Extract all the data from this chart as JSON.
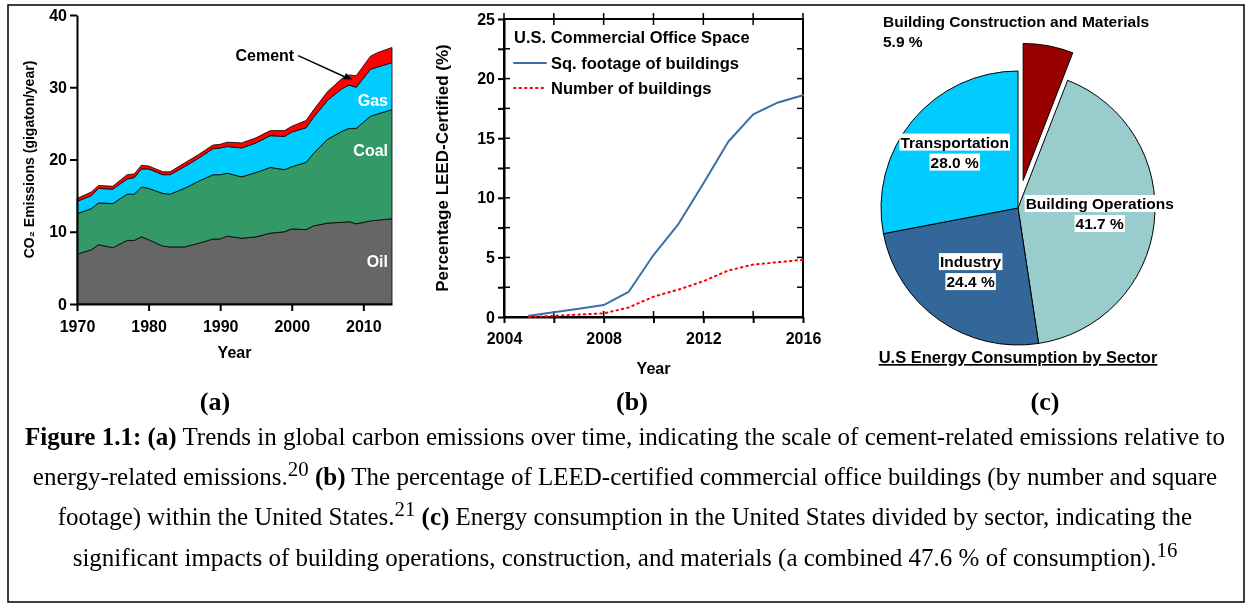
{
  "chart_data": [
    {
      "type": "area",
      "stacked": true,
      "xlabel": "Year",
      "ylabel": "CO₂ Emissions (gigaton/year)",
      "x": [
        1970,
        1972,
        1973,
        1975,
        1977,
        1978,
        1979,
        1980,
        1982,
        1983,
        1985,
        1987,
        1989,
        1990,
        1991,
        1993,
        1995,
        1997,
        1999,
        2000,
        2002,
        2003,
        2005,
        2007,
        2008,
        2009,
        2011,
        2012,
        2014
      ],
      "xlim": [
        1970,
        2014
      ],
      "xticks": [
        1970,
        1980,
        1990,
        2000,
        2010
      ],
      "ylim": [
        0,
        40
      ],
      "yticks": [
        0,
        10,
        20,
        30,
        40
      ],
      "series": [
        {
          "name": "Oil",
          "color": "#666666",
          "values": [
            6.9,
            7.5,
            8.2,
            7.8,
            8.8,
            8.8,
            9.3,
            8.9,
            8.0,
            7.9,
            7.9,
            8.4,
            9.0,
            9.0,
            9.4,
            9.1,
            9.3,
            9.8,
            10.0,
            10.4,
            10.3,
            10.8,
            11.2,
            11.3,
            11.4,
            11.1,
            11.5,
            11.6,
            11.8
          ]
        },
        {
          "name": "Coal",
          "color": "#339966",
          "values": [
            5.6,
            5.7,
            5.8,
            6.1,
            6.4,
            6.4,
            6.9,
            7.1,
            7.3,
            7.3,
            8.1,
            8.6,
            8.9,
            8.9,
            8.7,
            8.5,
            8.9,
            9.1,
            8.6,
            8.6,
            9.3,
            10.0,
            11.6,
            12.6,
            12.9,
            13.2,
            14.5,
            14.7,
            15.1
          ]
        },
        {
          "name": "Gas",
          "color": "#00ccff",
          "values": [
            1.7,
            1.8,
            2.0,
            2.0,
            2.1,
            2.3,
            2.5,
            2.7,
            2.6,
            2.7,
            3.0,
            3.2,
            3.6,
            3.7,
            3.7,
            4.0,
            4.1,
            4.4,
            4.6,
            4.8,
            4.8,
            5.0,
            5.4,
            5.9,
            6.0,
            5.7,
            6.5,
            6.5,
            6.5
          ]
        },
        {
          "name": "Cement",
          "color": "#ff0000",
          "values": [
            0.4,
            0.5,
            0.4,
            0.4,
            0.6,
            0.5,
            0.5,
            0.4,
            0.4,
            0.4,
            0.5,
            0.5,
            0.5,
            0.5,
            0.6,
            0.7,
            0.7,
            0.7,
            0.8,
            0.8,
            1.0,
            1.0,
            1.2,
            1.4,
            1.4,
            1.6,
            1.8,
            2.0,
            2.1
          ]
        }
      ],
      "annotations": [
        "(a)",
        "Figure 1.1: (a) Trends in global carbon emissions over time, indicating the scale of cement-related emissions relative to energy-related emissions.$^{20}$ (b) The percentage of LEED-certified commercial office buildings (by number and square footage) within the United States.$^{21}$ (c) Energy consumption in the United States divided by sector, indicating the significant impacts of building operations, construction, and materials (a combined 47.6 % of consumption).$^{16}$"
      ]
    },
    {
      "type": "line",
      "xlabel": "Year",
      "ylabel": "Percentage LEED-Certified (%)",
      "legend_title": "U.S. Commercial Office Space",
      "legend": "top left",
      "x": [
        2005,
        2006,
        2007,
        2008,
        2009,
        2010,
        2011,
        2012,
        2013,
        2014,
        2015,
        2016
      ],
      "xlim": [
        2004,
        2016
      ],
      "xticks": [
        2004,
        {
          "value": 2006,
          "label": null
        },
        2008,
        {
          "value": 2010,
          "label": null
        },
        2012,
        {
          "value": 2014,
          "label": null
        },
        2016
      ],
      "ylim": [
        0,
        25
      ],
      "yticks": [
        0,
        {
          "value": 2.5,
          "label": null
        },
        5,
        {
          "value": 7.5,
          "label": null
        },
        10,
        {
          "value": 12.5,
          "label": null
        },
        15,
        {
          "value": 17.5,
          "label": null
        },
        20,
        {
          "value": 22.5,
          "label": null
        },
        25
      ],
      "series": [
        {
          "name": "Sq. footage of buildings",
          "color": "#3c6ea5",
          "line_style": "solid",
          "values": [
            0.1,
            0.4,
            0.7,
            1.0,
            2.1,
            5.2,
            7.8,
            11.2,
            14.7,
            17.0,
            18.0,
            18.6
          ]
        },
        {
          "name": "Number of buildings",
          "color": "#ff0000",
          "line_style": "dotted",
          "values": [
            0,
            0.1,
            0.2,
            0.3,
            0.8,
            1.7,
            2.3,
            3.0,
            3.9,
            4.4,
            4.6,
            4.8
          ]
        }
      ],
      "annotations": [
        "(b)"
      ]
    },
    {
      "type": "pie",
      "title": "U.S Energy Consumption by Sector",
      "categories": [
        "Building Construction and Materials",
        "Building Operations",
        "Industry",
        "Transportation"
      ],
      "values": [
        5.9,
        41.7,
        24.4,
        28.0
      ],
      "colors": [
        "#990000",
        "#99cccc",
        "#336699",
        "#00ccff"
      ],
      "value_labels": [
        "5.9 %",
        "41.7 %",
        "24.4 %",
        "28.0 %"
      ],
      "annotations": [
        "(c)"
      ]
    }
  ]
}
